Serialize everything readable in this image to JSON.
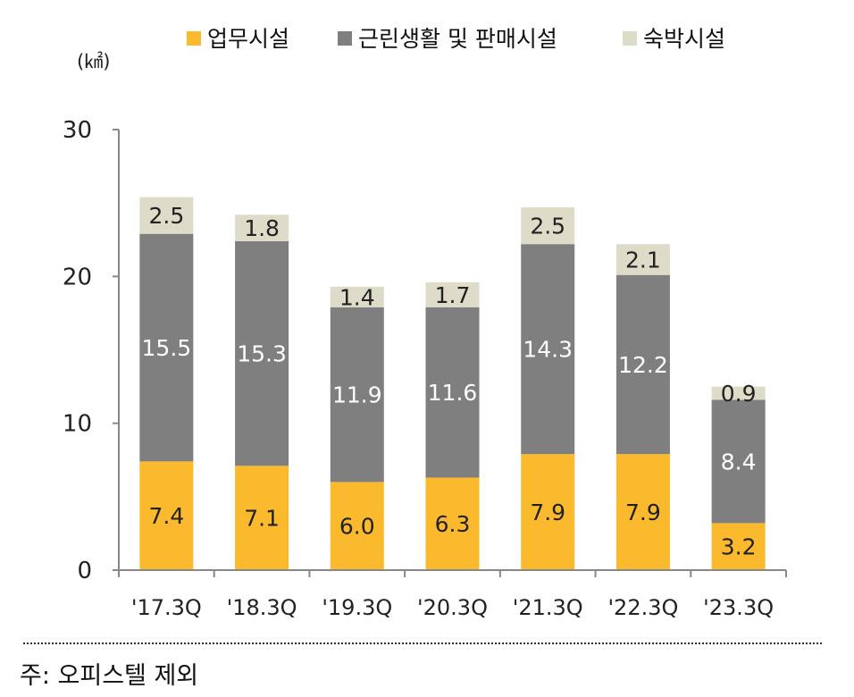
{
  "chart_data": {
    "type": "bar",
    "stacked": true,
    "unit": "(㎢)",
    "categories": [
      "'17.3Q",
      "'18.3Q",
      "'19.3Q",
      "'20.3Q",
      "'21.3Q",
      "'22.3Q",
      "'23.3Q"
    ],
    "series": [
      {
        "name": "업무시설",
        "color": "#fbb92d",
        "label_color": "#222222",
        "values": [
          7.4,
          7.1,
          6.0,
          6.3,
          7.9,
          7.9,
          3.2
        ]
      },
      {
        "name": "근린생활 및 판매시설",
        "color": "#7f7f7f",
        "label_color": "#ffffff",
        "values": [
          15.5,
          15.3,
          11.9,
          11.6,
          14.3,
          12.2,
          8.4
        ]
      },
      {
        "name": "숙박시설",
        "color": "#dedbc8",
        "label_color": "#222222",
        "values": [
          2.5,
          1.8,
          1.4,
          1.7,
          2.5,
          2.1,
          0.9
        ]
      }
    ],
    "ylim": [
      0,
      30
    ],
    "yticks": [
      "0",
      "10",
      "20",
      "30"
    ],
    "legend_position": "top"
  },
  "note": "주: 오피스텔 제외"
}
